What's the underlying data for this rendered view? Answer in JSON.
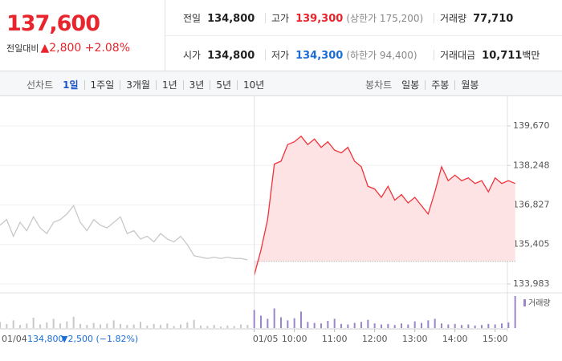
{
  "header": {
    "price": "137,600",
    "change_label": "전일대비",
    "change": "▲2,800",
    "change_rate": "+2.08%",
    "stats": [
      [
        {
          "label": "전일",
          "value": "134,800"
        },
        {
          "label": "고가",
          "value": "139,300",
          "note": "(상한가 175,200)"
        },
        {
          "label": "거래량",
          "value": "77,710"
        }
      ],
      [
        {
          "label": "시가",
          "value": "134,800"
        },
        {
          "label": "저가",
          "value": "134,300",
          "note": "(하한가 94,400)"
        },
        {
          "label": "거래대금",
          "value": "10,711",
          "unit": "백만"
        }
      ]
    ]
  },
  "tabs": {
    "line_chart": {
      "label": "선차트",
      "options": [
        "1일",
        "1주일",
        "3개월",
        "1년",
        "3년",
        "5년",
        "10년"
      ],
      "selected": 0
    },
    "candle_chart": {
      "label": "봉차트",
      "options": [
        "일봉",
        "주봉",
        "월봉"
      ]
    }
  },
  "chart_data": {
    "type": "line",
    "categories": [
      null,
      null,
      null,
      null,
      null,
      null,
      null,
      null,
      null,
      null,
      null,
      null,
      null,
      null,
      null,
      null,
      null,
      null,
      null,
      null,
      null,
      null,
      null,
      null,
      null,
      null,
      null,
      null,
      null,
      null,
      null,
      null,
      null,
      null,
      null,
      null,
      null,
      null,
      "01/05",
      null,
      null,
      null,
      null,
      null,
      "10:00",
      null,
      null,
      null,
      null,
      null,
      "11:00",
      null,
      null,
      null,
      null,
      null,
      "12:00",
      null,
      null,
      null,
      null,
      null,
      "13:00",
      null,
      null,
      null,
      null,
      null,
      "14:00",
      null,
      null,
      null,
      null,
      null,
      "15:00",
      null,
      null,
      null
    ],
    "series": [
      {
        "color": "#c8c8c8",
        "values": [
          136100,
          136300,
          135700,
          136200,
          135900,
          136400,
          136000,
          135800,
          136200,
          136300,
          136500,
          136800,
          136200,
          135900,
          136300,
          136100,
          136000,
          136200,
          136400,
          135800,
          135900,
          135600,
          135700,
          135500,
          135800,
          135600,
          135500,
          135700,
          135400,
          135000,
          134950,
          134900,
          134950,
          134900,
          134950,
          134900,
          134900,
          134850,
          null,
          null,
          null,
          null,
          null,
          null,
          null,
          null,
          null,
          null,
          null,
          null,
          null,
          null,
          null,
          null,
          null,
          null,
          null,
          null,
          null,
          null,
          null,
          null,
          null,
          null,
          null,
          null,
          null,
          null,
          null,
          null,
          null,
          null,
          null,
          null,
          null,
          null,
          null,
          null
        ]
      },
      {
        "color": "#f0333a",
        "fill": "#fde3e4",
        "values": [
          null,
          null,
          null,
          null,
          null,
          null,
          null,
          null,
          null,
          null,
          null,
          null,
          null,
          null,
          null,
          null,
          null,
          null,
          null,
          null,
          null,
          null,
          null,
          null,
          null,
          null,
          null,
          null,
          null,
          null,
          null,
          null,
          null,
          null,
          null,
          null,
          null,
          null,
          134300,
          135200,
          136300,
          138300,
          138400,
          139000,
          139100,
          139300,
          139000,
          139200,
          138900,
          139100,
          138800,
          138700,
          138900,
          138400,
          138200,
          137500,
          137400,
          137100,
          137500,
          137000,
          137200,
          136900,
          137100,
          136800,
          136500,
          137300,
          138200,
          137700,
          137900,
          137700,
          137800,
          137600,
          137700,
          137300,
          137800,
          137600,
          137700,
          137600
        ]
      }
    ],
    "reference_line": 134800,
    "ylim": [
      133983,
      139670
    ],
    "yticks": [
      {
        "value": 133983,
        "label": "133,983"
      },
      {
        "value": 135405,
        "label": "135,405"
      },
      {
        "value": 136827,
        "label": "136,827"
      },
      {
        "value": 138248,
        "label": "138,248"
      },
      {
        "value": 139670,
        "label": "139,670"
      }
    ],
    "grid": true,
    "volume": {
      "name": "거래량",
      "color": "#9a86c8",
      "values": [
        1200,
        800,
        1500,
        600,
        900,
        2000,
        700,
        1100,
        1800,
        900,
        1300,
        2200,
        800,
        600,
        1000,
        700,
        900,
        1500,
        800,
        600,
        700,
        1200,
        500,
        800,
        600,
        900,
        400,
        700,
        1100,
        1600,
        500,
        400,
        600,
        300,
        500,
        400,
        700,
        600,
        3500,
        2400,
        1800,
        3800,
        2100,
        1500,
        1900,
        3200,
        1200,
        1000,
        900,
        1400,
        1800,
        800,
        700,
        1000,
        1200,
        1600,
        900,
        700,
        800,
        600,
        900,
        700,
        1300,
        1000,
        1500,
        1800,
        900,
        700,
        800,
        600,
        700,
        500,
        600,
        800,
        700,
        900,
        1100,
        6200
      ]
    },
    "note": {
      "date": "01/04",
      "close": "134,800",
      "change": "▼2,500 (−1.82%)"
    }
  }
}
